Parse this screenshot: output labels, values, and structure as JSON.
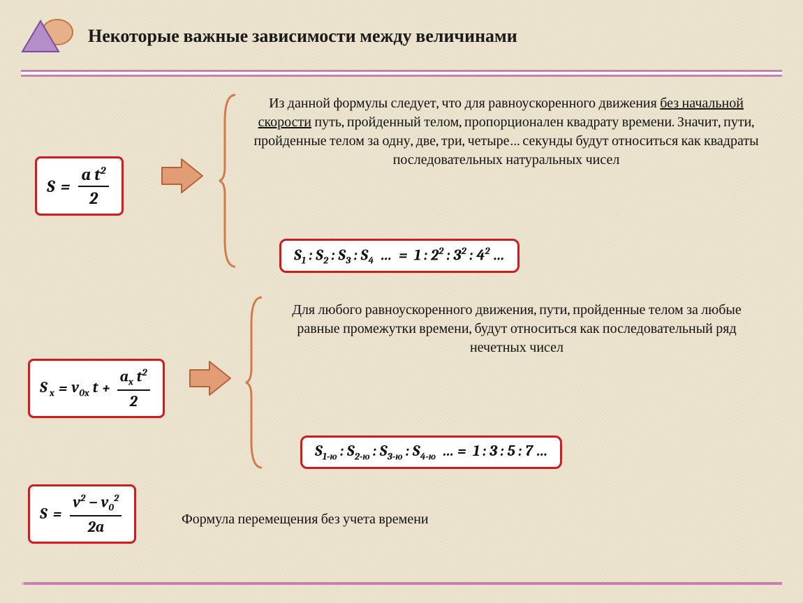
{
  "colors": {
    "background": "#ede5d0",
    "accent_pink": "#c97fb0",
    "box_border": "#cf1d1f",
    "arrow_fill": "#e29d77",
    "arrow_stroke": "#b8623a",
    "brace": "#d37a4a",
    "text": "#111111",
    "logo_triangle_fill": "#b48ec8",
    "logo_triangle_stroke": "#7a4f9a",
    "logo_disc_fill": "#e6b089",
    "logo_disc_stroke": "#c07a48"
  },
  "title": "Некоторые важные зависимости между величинами",
  "block1": {
    "formula": {
      "lhs": "S",
      "num": "a t",
      "num_sup": "2",
      "den": "2"
    },
    "text_pre": "Из данной формулы следует, что для равноускоренного движения ",
    "text_underlined": "без начальной скорости",
    "text_post": " путь, пройденный телом, пропорционален квадрату времени. Значит, пути, пройденные телом за одну, две, три, четыре… секунды будут относиться как квадраты последовательных натуральных чисел",
    "ratio_html": "S<sub>1</sub> : S<sub>2</sub> : S<sub>3</sub> : S<sub>4</sub> &nbsp;…&nbsp; = &nbsp;1 : 2<sup>2</sup> : 3<sup>2</sup> : 4<sup>2</sup> …"
  },
  "block2": {
    "formula": {
      "lhs": "S",
      "lhs_sub": "x",
      "term1_a": "v",
      "term1_a_sub": "0x",
      "term1_b": "t",
      "frac_num_a": "a",
      "frac_num_a_sub": "x",
      "frac_num_b": "t",
      "frac_num_b_sup": "2",
      "frac_den": "2"
    },
    "text": "Для любого равноускоренного движения, пути, пройденные телом за любые равные промежутки времени, будут относиться как последовательный ряд нечетных чисел",
    "ratio_html": "S<sub>1-ю</sub> : S<sub>2-ю</sub> : S<sub>3-ю</sub> : S<sub>4-ю</sub> &nbsp;… = &nbsp;1 : 3 : 5 : 7 …"
  },
  "block3": {
    "formula": {
      "lhs": "S",
      "num_html": "v<sup>2</sup> − v<sub>0</sub><sup>2</sup>",
      "den": "2a"
    },
    "label": "Формула  перемещения без учета времени"
  },
  "typography": {
    "title_fontsize": 26,
    "body_fontsize": 20,
    "ratio_fontsize": 22
  }
}
